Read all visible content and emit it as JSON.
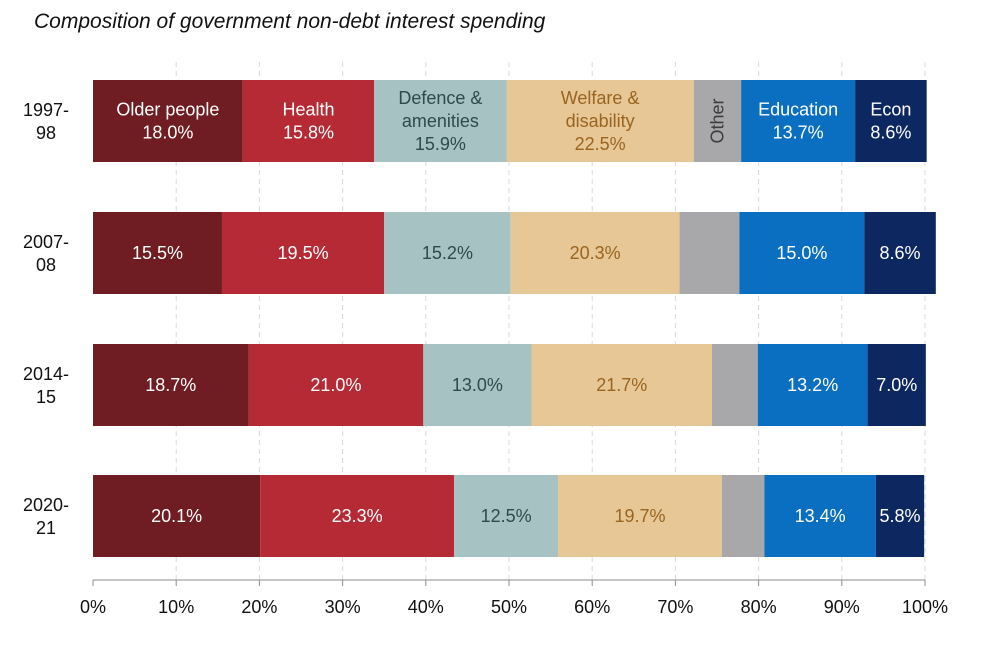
{
  "chart_data": {
    "type": "bar",
    "orientation": "horizontal-stacked-100",
    "title": "Composition of government non-debt interest spending",
    "xlabel": "",
    "ylabel": "",
    "xlim": [
      0,
      100
    ],
    "x_ticks": [
      "0%",
      "10%",
      "20%",
      "30%",
      "40%",
      "50%",
      "60%",
      "70%",
      "80%",
      "90%",
      "100%"
    ],
    "grid": "vertical-dashed",
    "categories": [
      {
        "line1": "1997-",
        "line2": "98"
      },
      {
        "line1": "2007-",
        "line2": "08"
      },
      {
        "line1": "2014-",
        "line2": "15"
      },
      {
        "line1": "2020-",
        "line2": "21"
      }
    ],
    "series": [
      {
        "name": "Older people",
        "color": "#6f1d23",
        "text_color": "#ffffff",
        "values": [
          18.0,
          15.5,
          18.7,
          20.1
        ],
        "labels": [
          [
            "Older people",
            "18.0%"
          ],
          [
            "15.5%"
          ],
          [
            "18.7%"
          ],
          [
            "20.1%"
          ]
        ]
      },
      {
        "name": "Health",
        "color": "#b52a35",
        "text_color": "#ffffff",
        "values": [
          15.8,
          19.5,
          21.0,
          23.3
        ],
        "labels": [
          [
            "Health",
            "15.8%"
          ],
          [
            "19.5%"
          ],
          [
            "21.0%"
          ],
          [
            "23.3%"
          ]
        ]
      },
      {
        "name": "Defence & amenities",
        "color": "#a6c2c3",
        "text_color": "#2f4a4d",
        "values": [
          15.9,
          15.2,
          13.0,
          12.5
        ],
        "labels": [
          [
            "Defence  &",
            "amenities",
            "15.9%"
          ],
          [
            "15.2%"
          ],
          [
            "13.0%"
          ],
          [
            "12.5%"
          ]
        ]
      },
      {
        "name": "Welfare & disability",
        "color": "#e6c795",
        "text_color": "#9a6420",
        "values": [
          22.5,
          20.3,
          21.7,
          19.7
        ],
        "labels": [
          [
            "Welfare &",
            "disability",
            "22.5%"
          ],
          [
            "20.3%"
          ],
          [
            "21.7%"
          ],
          [
            "19.7%"
          ]
        ]
      },
      {
        "name": "Other",
        "color": "#a8a8aa",
        "text_color": "#3d3d3d",
        "values": [
          5.7,
          7.2,
          5.5,
          5.1
        ],
        "labels": [
          [
            "Other"
          ],
          [],
          [],
          []
        ]
      },
      {
        "name": "Education",
        "color": "#0a6ec1",
        "text_color": "#ffffff",
        "values": [
          13.7,
          15.0,
          13.2,
          13.4
        ],
        "labels": [
          [
            "Education",
            "13.7%"
          ],
          [
            "15.0%"
          ],
          [
            "13.2%"
          ],
          [
            "13.4%"
          ]
        ]
      },
      {
        "name": "Econ",
        "color": "#0d2760",
        "text_color": "#ffffff",
        "values": [
          8.6,
          8.6,
          7.0,
          5.8
        ],
        "labels": [
          [
            "Econ",
            "8.6%"
          ],
          [
            "8.6%"
          ],
          [
            "7.0%"
          ],
          [
            "5.8%"
          ]
        ]
      }
    ]
  }
}
